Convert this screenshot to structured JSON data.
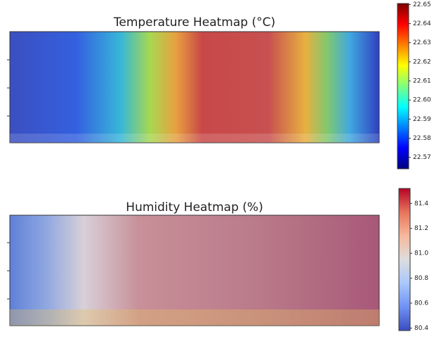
{
  "chart_data": [
    {
      "type": "heatmap",
      "title": "Temperature Heatmap (°C)",
      "colormap": "jet",
      "clim": [
        22.564,
        22.6505
      ],
      "cticks": [
        22.57,
        22.58,
        22.59,
        {
          "value": 22.6,
          "label": "22.60"
        },
        22.61,
        22.62,
        22.63,
        22.64,
        22.65
      ]
    },
    {
      "type": "heatmap",
      "title": "Humidity Heatmap (%)",
      "colormap": "coolwarm",
      "clim": [
        80.38,
        81.52
      ],
      "cticks": [
        80.4,
        80.6,
        80.8,
        {
          "value": 81,
          "label": "81.0"
        },
        81.2,
        81.4
      ]
    }
  ]
}
